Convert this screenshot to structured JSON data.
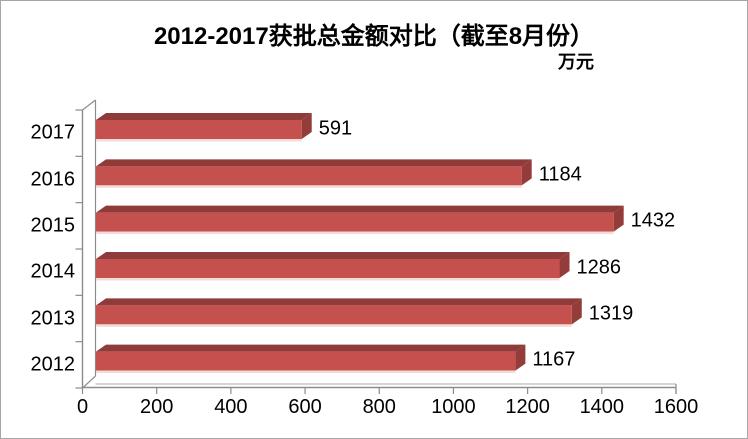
{
  "title": "2012-2017获批总金额对比（截至8月份）",
  "unit": "万元",
  "chart_data": {
    "type": "bar",
    "orientation": "horizontal",
    "style": "3d-excel",
    "title": "2012-2017获批总金额对比（截至8月份）",
    "xlabel": "万元",
    "ylabel": "",
    "categories": [
      "2017",
      "2016",
      "2015",
      "2014",
      "2013",
      "2012"
    ],
    "values": [
      591,
      1184,
      1432,
      1286,
      1319,
      1167
    ],
    "data_labels_shown": true,
    "xlim": [
      0,
      1600
    ],
    "xticks": [
      "0",
      "200",
      "400",
      "600",
      "800",
      "1000",
      "1200",
      "1400",
      "1600"
    ],
    "grid": false,
    "legend": null,
    "colors": {
      "bar_front": "#C4514E",
      "bar_top": "#8E3B3A",
      "bar_side": "#943C3A",
      "bar_bottom_highlight": "#F2DCDB",
      "axis_line": "#8C8C8C",
      "text": "#000000",
      "background": "#FFFFFF",
      "outer_border": "#A6A6A6"
    }
  }
}
